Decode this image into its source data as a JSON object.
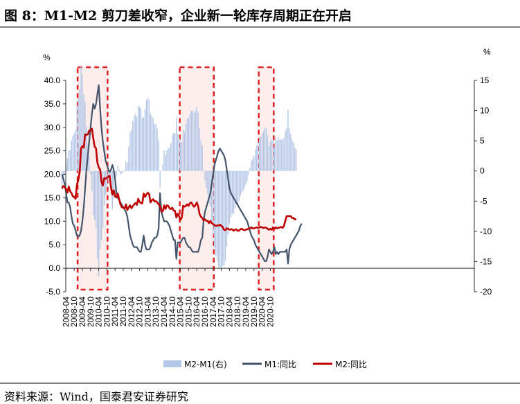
{
  "title": "图 8：M1-M2 剪刀差收窄，企业新一轮库存周期正在开启",
  "source": "资料来源：Wind，国泰君安证券研究",
  "colors": {
    "m1": "#44546a",
    "m2": "#c00000",
    "spread": "#b4c7e7",
    "box": "#e02020",
    "box_fill": "#fdeeee"
  },
  "chart_data": {
    "type": "line",
    "title": "",
    "left_axis": {
      "label": "%",
      "ylim": [
        -5,
        40
      ],
      "ticks": [
        "40.0",
        "35.0",
        "30.0",
        "25.0",
        "20.0",
        "15.0",
        "10.0",
        "5.0",
        "0.0",
        "-5.0"
      ]
    },
    "right_axis": {
      "label": "%",
      "ylim": [
        -20,
        15
      ],
      "ticks": [
        "15",
        "10",
        "5",
        "0",
        "-5",
        "-10",
        "-15",
        "-20"
      ]
    },
    "x_ticks": [
      "2008-04",
      "2008-10",
      "2009-04",
      "2009-10",
      "2010-04",
      "2010-10",
      "2011-04",
      "2011-10",
      "2012-04",
      "2012-10",
      "2013-04",
      "2013-10",
      "2014-04",
      "2014-10",
      "2015-04",
      "2015-10",
      "2016-04",
      "2016-10",
      "2017-04",
      "2017-10",
      "2018-04",
      "2018-10",
      "2019-04",
      "2019-10",
      "2020-04",
      "2020-10"
    ],
    "legend": [
      "M2-M1(右)",
      "M1:同比",
      "M2:同比"
    ],
    "highlight_periods": [
      [
        "2009-01",
        "2010-10"
      ],
      [
        "2015-04",
        "2017-04"
      ],
      [
        "2020-02",
        "2020-12"
      ]
    ],
    "series": [
      {
        "name": "M1:同比",
        "axis": "left",
        "x_start": "2008-01",
        "values": [
          20.0,
          19.0,
          18.0,
          16.0,
          14.0,
          14.0,
          13.0,
          11.0,
          9.5,
          9.0,
          8.0,
          7.0,
          6.7,
          7.0,
          8.0,
          10.0,
          13.0,
          17.0,
          21.0,
          24.0,
          27.0,
          30.0,
          33.0,
          35.0,
          34.0,
          35.0,
          37.0,
          39.0,
          34.0,
          30.0,
          27.0,
          25.0,
          23.0,
          22.0,
          21.0,
          20.5,
          21.0,
          22.0,
          21.0,
          19.0,
          16.0,
          15.0,
          14.5,
          14.0,
          13.5,
          13.0,
          12.5,
          12.0,
          11.0,
          9.0,
          7.0,
          6.0,
          5.0,
          4.5,
          4.5,
          4.5,
          4.0,
          3.5,
          3.5,
          5.0,
          7.0,
          5.0,
          4.0,
          4.0,
          4.0,
          4.5,
          5.5,
          6.0,
          6.5,
          6.5,
          7.0,
          8.5,
          16.0,
          12.0,
          11.0,
          10.0,
          10.0,
          10.0,
          9.5,
          9.0,
          8.0,
          7.0,
          6.0,
          6.0,
          2.0,
          5.5,
          5.5,
          5.5,
          6.0,
          6.5,
          6.5,
          5.5,
          5.0,
          4.5,
          4.5,
          4.0,
          3.5,
          3.5,
          3.5,
          3.5,
          3.5,
          4.5,
          6.0,
          6.5,
          10.0,
          12.0,
          13.0,
          14.0,
          15.0,
          16.0,
          18.0,
          20.0,
          22.0,
          23.0,
          24.0,
          25.0,
          25.5,
          25.0,
          24.5,
          24.0,
          23.0,
          21.0,
          19.0,
          17.0,
          16.0,
          15.5,
          15.0,
          14.5,
          14.0,
          13.5,
          13.0,
          12.5,
          12.0,
          11.5,
          11.0,
          10.5,
          10.0,
          9.0,
          8.0,
          7.0,
          6.5,
          6.0,
          5.0,
          4.5,
          4.0,
          3.5,
          3.0,
          2.5,
          2.0,
          1.5,
          1.5,
          2.5,
          4.0,
          3.5,
          3.0,
          3.5,
          4.5,
          3.0,
          3.5,
          3.0,
          3.5,
          3.5,
          3.5,
          3.5,
          3.5,
          4.0,
          1.0,
          4.0,
          5.0,
          5.5,
          6.0,
          6.5,
          7.0,
          7.5,
          8.0,
          9.0,
          9.5
        ]
      },
      {
        "name": "M2:同比",
        "axis": "left",
        "x_start": "2008-01",
        "values": [
          17.0,
          17.5,
          17.3,
          16.9,
          16.1,
          17.4,
          16.4,
          16.0,
          15.3,
          15.2,
          14.8,
          17.8,
          18.8,
          20.5,
          25.5,
          26.0,
          25.7,
          28.5,
          28.4,
          28.5,
          29.3,
          29.4,
          29.7,
          27.7,
          25.9,
          25.5,
          22.5,
          21.5,
          21.0,
          18.5,
          17.6,
          19.2,
          19.0,
          19.3,
          19.5,
          19.7,
          17.2,
          15.7,
          16.6,
          15.3,
          15.1,
          15.9,
          14.7,
          13.5,
          13.0,
          12.9,
          12.7,
          13.6,
          12.4,
          13.0,
          13.4,
          12.8,
          13.2,
          13.6,
          13.9,
          13.5,
          14.8,
          14.1,
          13.9,
          13.8,
          15.9,
          15.2,
          15.7,
          16.1,
          15.8,
          14.0,
          14.5,
          14.7,
          14.2,
          14.3,
          14.0,
          13.6,
          13.2,
          12.1,
          12.1,
          13.4,
          12.6,
          13.4,
          13.3,
          12.8,
          12.6,
          12.9,
          12.3,
          12.2,
          10.8,
          11.6,
          11.1,
          10.3,
          10.8,
          13.3,
          13.1,
          13.3,
          13.6,
          13.3,
          13.9,
          14.0,
          13.5,
          13.1,
          13.4,
          14.0,
          13.2,
          11.6,
          11.0,
          10.7,
          10.2,
          10.4,
          10.1,
          10.1,
          9.6,
          10.1,
          9.6,
          9.4,
          9.2,
          9.0,
          9.1,
          9.1,
          9.3,
          9.0,
          8.8,
          8.2,
          8.1,
          8.5,
          8.4,
          8.2,
          8.3,
          8.3,
          8.0,
          8.2,
          8.3,
          8.0,
          8.0,
          8.3,
          8.4,
          8.2,
          8.1,
          8.2,
          8.3,
          8.4,
          8.5,
          8.7,
          8.5,
          8.5,
          8.6,
          8.7,
          8.6,
          8.7,
          8.8,
          8.7,
          8.6,
          8.7,
          8.6,
          8.4,
          8.2,
          8.4,
          8.2,
          8.7,
          8.4,
          8.7,
          8.5,
          8.6,
          8.7,
          8.8,
          8.6,
          9.0,
          10.1,
          11.1,
          11.1,
          11.1,
          11.1,
          10.7,
          10.7,
          10.4,
          10.5
        ]
      }
    ]
  }
}
